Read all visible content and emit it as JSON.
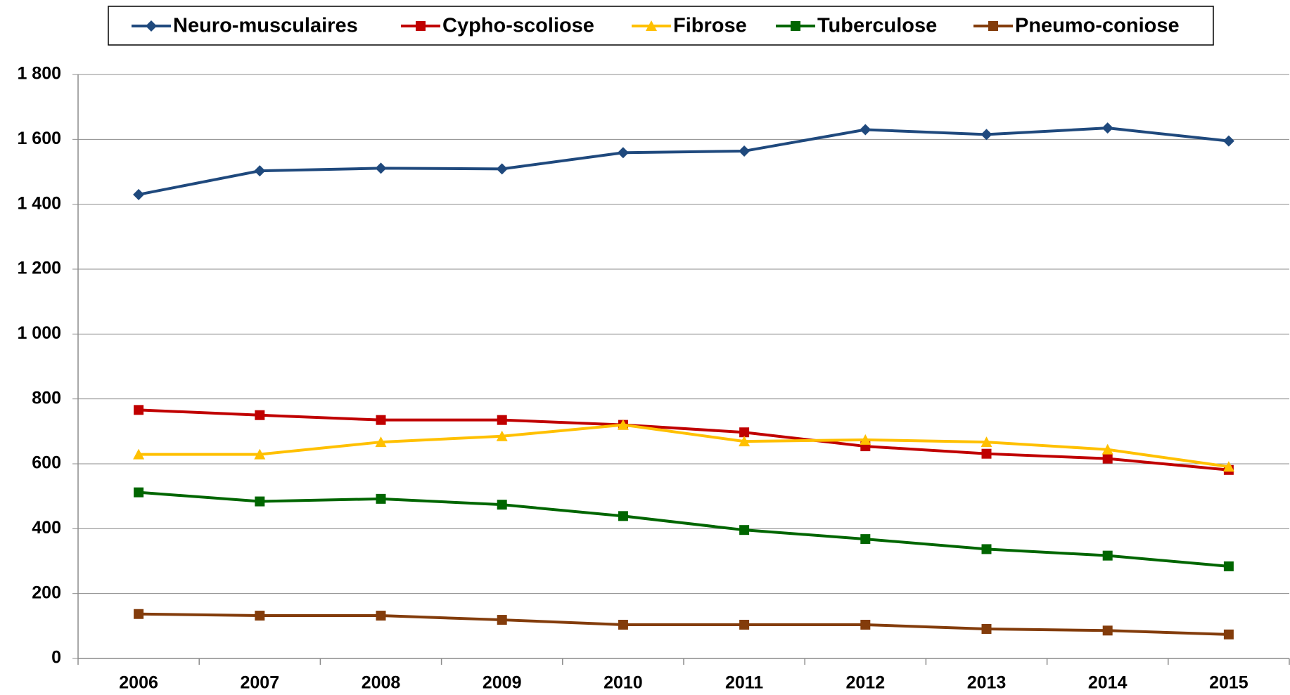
{
  "chart_data": {
    "type": "line",
    "categories": [
      "2006",
      "2007",
      "2008",
      "2009",
      "2010",
      "2011",
      "2012",
      "2013",
      "2014",
      "2015"
    ],
    "series": [
      {
        "name": "Neuro-musculaires",
        "color": "#1f497d",
        "marker": "diamond",
        "values": [
          1430,
          1503,
          1511,
          1509,
          1559,
          1564,
          1630,
          1615,
          1635,
          1595
        ]
      },
      {
        "name": "Cypho-scoliose",
        "color": "#c00000",
        "marker": "square",
        "values": [
          766,
          750,
          735,
          735,
          720,
          697,
          654,
          631,
          616,
          581
        ]
      },
      {
        "name": "Fibrose",
        "color": "#ffc000",
        "marker": "triangle",
        "values": [
          629,
          629,
          667,
          685,
          720,
          669,
          674,
          667,
          644,
          591
        ]
      },
      {
        "name": "Tuberculose",
        "color": "#006600",
        "marker": "square",
        "values": [
          512,
          484,
          492,
          474,
          439,
          396,
          368,
          337,
          317,
          284
        ]
      },
      {
        "name": "Pneumo-coniose",
        "color": "#833c0b",
        "marker": "square",
        "values": [
          137,
          132,
          132,
          119,
          104,
          104,
          104,
          91,
          86,
          74
        ]
      }
    ],
    "ylim": [
      0,
      1800
    ],
    "yticks": [
      0,
      200,
      400,
      600,
      800,
      {
        "value": 1000,
        "label": "1 000"
      },
      {
        "value": 1200,
        "label": "1 200"
      },
      {
        "value": 1400,
        "label": "1 400"
      },
      {
        "value": 1600,
        "label": "1 600"
      },
      {
        "value": 1800,
        "label": "1 800"
      }
    ],
    "grid": true,
    "legend": "top"
  }
}
